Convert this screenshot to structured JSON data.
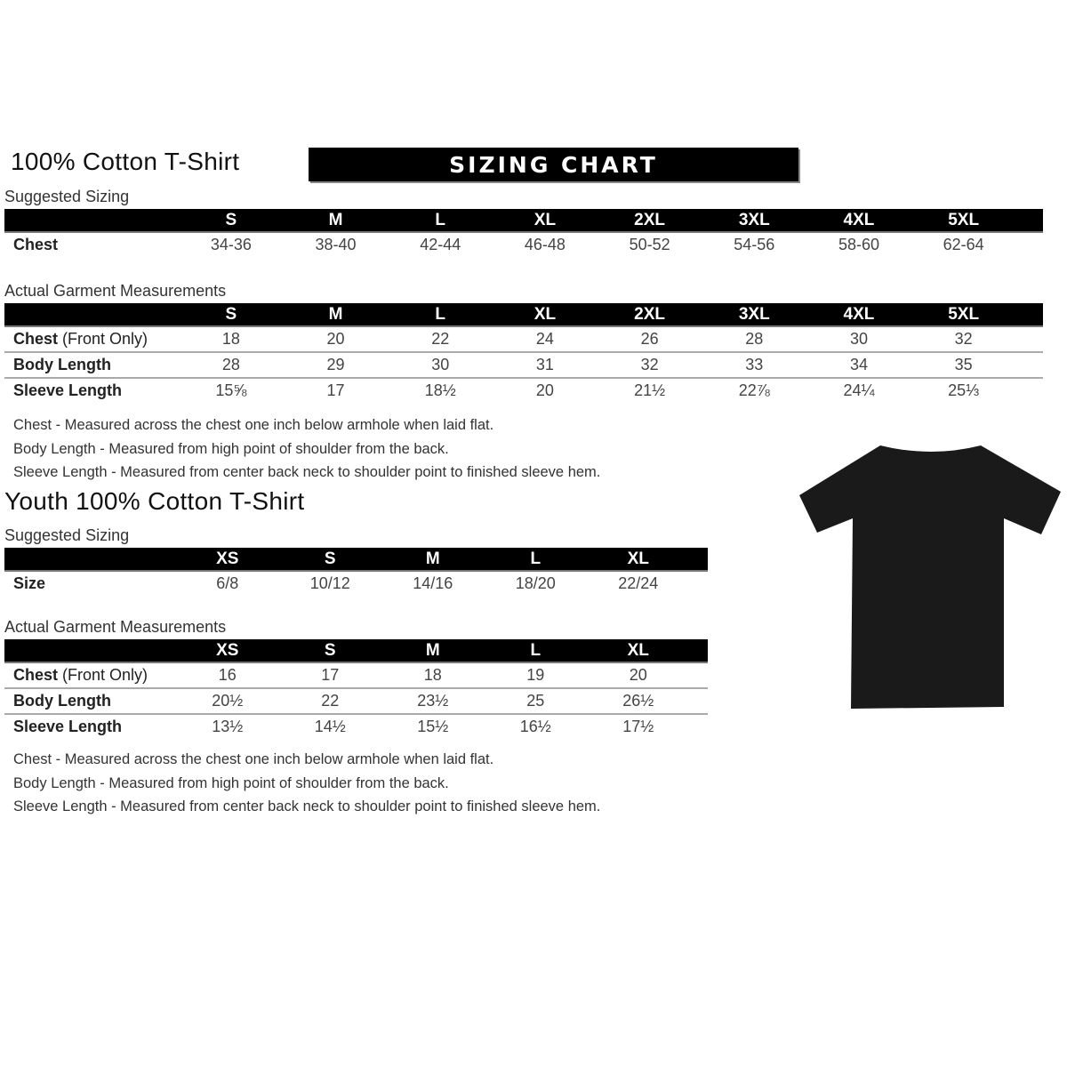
{
  "adult": {
    "title": "100% Cotton T-Shirt",
    "banner": "SIZING CHART",
    "suggested_label": "Suggested Sizing",
    "sizes": [
      "S",
      "M",
      "L",
      "XL",
      "2XL",
      "3XL",
      "4XL",
      "5XL"
    ],
    "suggested_rows": [
      {
        "label": "Chest",
        "values": [
          "34-36",
          "38-40",
          "42-44",
          "46-48",
          "50-52",
          "54-56",
          "58-60",
          "62-64"
        ]
      }
    ],
    "actual_label": "Actual Garment Measurements",
    "actual_rows": [
      {
        "label": "Chest",
        "label_note": "(Front Only)",
        "values": [
          "18",
          "20",
          "22",
          "24",
          "26",
          "28",
          "30",
          "32"
        ]
      },
      {
        "label": "Body Length",
        "values": [
          "28",
          "29",
          "30",
          "31",
          "32",
          "33",
          "34",
          "35"
        ]
      },
      {
        "label": "Sleeve Length",
        "values": [
          "15⅝",
          "17",
          "18½",
          "20",
          "21½",
          "22⅞",
          "24¼",
          "25⅓"
        ]
      }
    ],
    "notes": [
      "Chest - Measured across the chest one inch below armhole when laid flat.",
      "Body Length - Measured from high point of shoulder from the back.",
      "Sleeve Length - Measured from center back neck to shoulder point to finished sleeve hem."
    ]
  },
  "youth": {
    "title": "Youth 100% Cotton T-Shirt",
    "suggested_label": "Suggested Sizing",
    "sizes": [
      "XS",
      "S",
      "M",
      "L",
      "XL"
    ],
    "suggested_rows": [
      {
        "label": "Size",
        "values": [
          "6/8",
          "10/12",
          "14/16",
          "18/20",
          "22/24"
        ]
      }
    ],
    "actual_label": "Actual Garment Measurements",
    "actual_rows": [
      {
        "label": "Chest",
        "label_note": "(Front Only)",
        "values": [
          "16",
          "17",
          "18",
          "19",
          "20"
        ]
      },
      {
        "label": "Body Length",
        "values": [
          "20½",
          "22",
          "23½",
          "25",
          "26½"
        ]
      },
      {
        "label": "Sleeve Length",
        "values": [
          "13½",
          "14½",
          "15½",
          "16½",
          "17½"
        ]
      }
    ],
    "notes": [
      "Chest - Measured across the chest one inch below armhole when laid flat.",
      "Body Length - Measured from high point of shoulder from the back.",
      "Sleeve Length - Measured from center back neck to shoulder point to finished sleeve hem."
    ]
  },
  "tshirt_color": "#1a1a1a"
}
